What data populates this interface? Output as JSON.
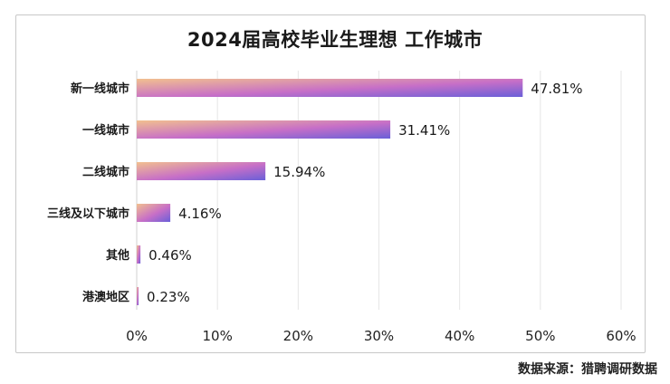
{
  "chart_data": {
    "type": "bar",
    "orientation": "horizontal",
    "title": "2024届高校毕业生理想 工作城市",
    "categories": [
      "新一线城市",
      "一线城市",
      "二线城市",
      "三线及以下城市",
      "其他",
      "港澳地区"
    ],
    "values": [
      47.81,
      31.41,
      15.94,
      4.16,
      0.46,
      0.23
    ],
    "data_labels": [
      "47.81%",
      "31.41%",
      "15.94%",
      "4.16%",
      "0.46%",
      "0.23%"
    ],
    "x_ticks": [
      "0%",
      "10%",
      "20%",
      "30%",
      "40%",
      "50%",
      "60%"
    ],
    "xlim": [
      0,
      60
    ],
    "grid": "vertical",
    "legend": "none",
    "bar_gradient": [
      "#f2c08f",
      "#c76fc7",
      "#6a5fd8"
    ]
  },
  "source": "数据来源：猎聘调研数据"
}
